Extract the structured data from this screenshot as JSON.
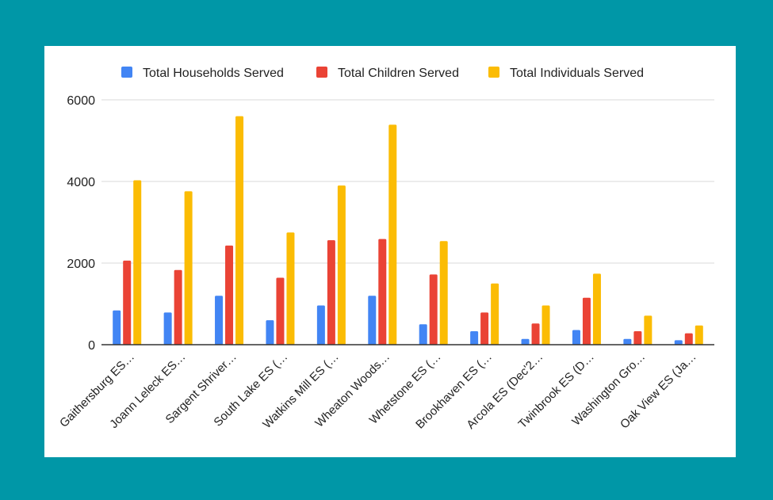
{
  "chart_data": {
    "type": "bar",
    "title": "",
    "xlabel": "",
    "ylabel": "",
    "ylim": [
      0,
      6000
    ],
    "yticks": [
      0,
      2000,
      4000,
      6000
    ],
    "y_tick_labels": [
      "0",
      "2000",
      "4000",
      "6000"
    ],
    "grid": true,
    "legend_position": "top",
    "categories": [
      "Gaithersburg ES…",
      "Joann Leleck ES…",
      "Sargent Shriver…",
      "South Lake ES (…",
      "Watkins Mill ES (…",
      "Wheaton Woods…",
      "Whetstone ES (…",
      "Brookhaven ES (…",
      "Arcola ES (Dec'2…",
      "Twinbrook ES (D…",
      "Washington Gro…",
      "Oak View ES (Ja…"
    ],
    "series": [
      {
        "name": "Total Households Served",
        "color": "#4285f4",
        "values": [
          840,
          790,
          1200,
          600,
          960,
          1200,
          500,
          330,
          140,
          360,
          140,
          110
        ]
      },
      {
        "name": "Total Children Served",
        "color": "#ea4335",
        "values": [
          2060,
          1830,
          2430,
          1640,
          2560,
          2590,
          1720,
          790,
          520,
          1150,
          330,
          280
        ]
      },
      {
        "name": "Total Individuals Served",
        "color": "#fbbc04",
        "values": [
          4030,
          3760,
          5600,
          2750,
          3900,
          5390,
          2540,
          1500,
          960,
          1740,
          710,
          470
        ]
      }
    ]
  },
  "colors": {
    "background": "#0097a7",
    "card": "#ffffff",
    "grid": "#d9d9d9",
    "axis": "#333333"
  }
}
